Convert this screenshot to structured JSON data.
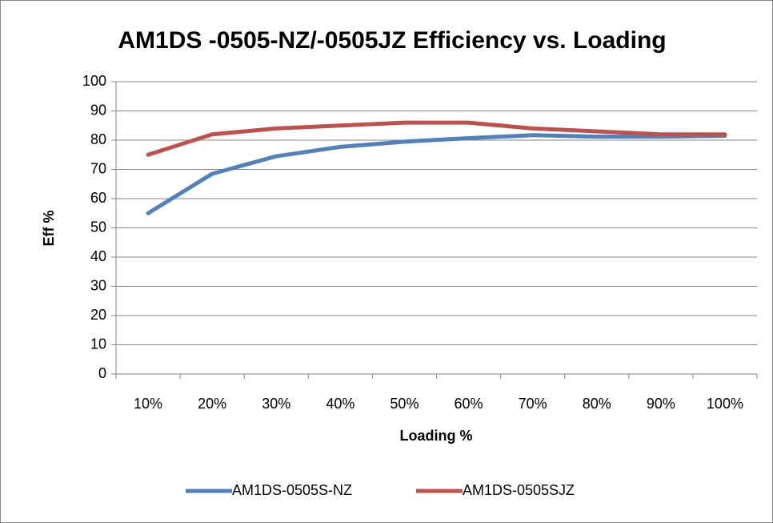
{
  "chart_data": {
    "type": "line",
    "title": "AM1DS -0505-NZ/-0505JZ Efficiency vs. Loading",
    "x_label": "Loading %",
    "y_label": "Eff %",
    "categories": [
      "10%",
      "20%",
      "30%",
      "40%",
      "50%",
      "60%",
      "70%",
      "80%",
      "90%",
      "100%"
    ],
    "series": [
      {
        "name": "AM1DS-0505S-NZ",
        "color": "#4f81bd",
        "values": [
          55,
          68.5,
          74.5,
          77.7,
          79.5,
          80.7,
          81.7,
          81.2,
          81.2,
          81.5
        ]
      },
      {
        "name": "AM1DS-0505SJZ",
        "color": "#c0504d",
        "values": [
          75,
          82,
          84,
          85,
          86,
          86,
          84,
          83,
          82,
          82
        ]
      }
    ],
    "ylim": [
      0,
      100
    ],
    "yticks": [
      0,
      10,
      20,
      30,
      40,
      50,
      60,
      70,
      80,
      90,
      100
    ],
    "grid": true,
    "legend": "bottom"
  }
}
